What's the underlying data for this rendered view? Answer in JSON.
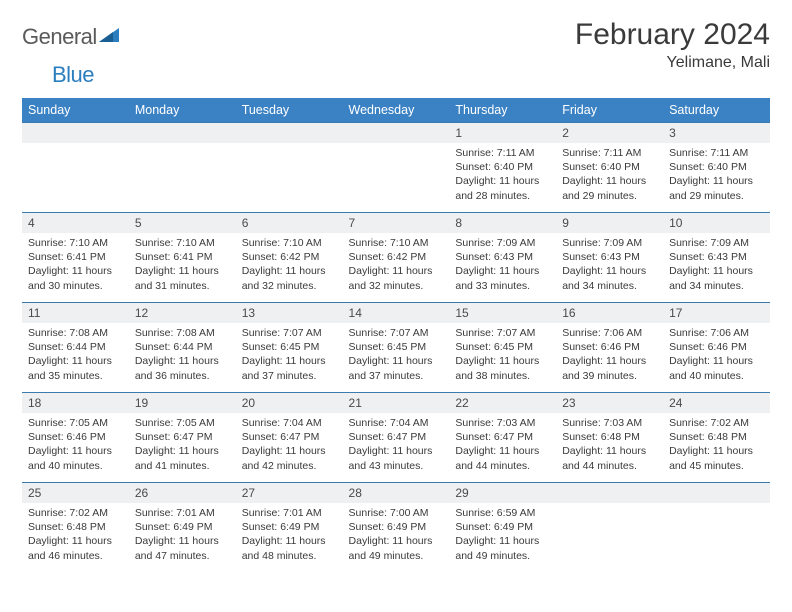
{
  "brand": {
    "part1": "General",
    "part2": "Blue"
  },
  "title": "February 2024",
  "location": "Yelimane, Mali",
  "colors": {
    "header_bg": "#3b82c4",
    "header_text": "#ffffff",
    "cell_border": "#3b7bb0",
    "daynum_bg": "#eef0f2",
    "text": "#3a3a3a",
    "logo_gray": "#5a5a5a",
    "logo_blue": "#2b7fbf"
  },
  "weekdays": [
    "Sunday",
    "Monday",
    "Tuesday",
    "Wednesday",
    "Thursday",
    "Friday",
    "Saturday"
  ],
  "weeks": [
    [
      null,
      null,
      null,
      null,
      {
        "d": "1",
        "sr": "7:11 AM",
        "ss": "6:40 PM",
        "dl": "11 hours and 28 minutes."
      },
      {
        "d": "2",
        "sr": "7:11 AM",
        "ss": "6:40 PM",
        "dl": "11 hours and 29 minutes."
      },
      {
        "d": "3",
        "sr": "7:11 AM",
        "ss": "6:40 PM",
        "dl": "11 hours and 29 minutes."
      }
    ],
    [
      {
        "d": "4",
        "sr": "7:10 AM",
        "ss": "6:41 PM",
        "dl": "11 hours and 30 minutes."
      },
      {
        "d": "5",
        "sr": "7:10 AM",
        "ss": "6:41 PM",
        "dl": "11 hours and 31 minutes."
      },
      {
        "d": "6",
        "sr": "7:10 AM",
        "ss": "6:42 PM",
        "dl": "11 hours and 32 minutes."
      },
      {
        "d": "7",
        "sr": "7:10 AM",
        "ss": "6:42 PM",
        "dl": "11 hours and 32 minutes."
      },
      {
        "d": "8",
        "sr": "7:09 AM",
        "ss": "6:43 PM",
        "dl": "11 hours and 33 minutes."
      },
      {
        "d": "9",
        "sr": "7:09 AM",
        "ss": "6:43 PM",
        "dl": "11 hours and 34 minutes."
      },
      {
        "d": "10",
        "sr": "7:09 AM",
        "ss": "6:43 PM",
        "dl": "11 hours and 34 minutes."
      }
    ],
    [
      {
        "d": "11",
        "sr": "7:08 AM",
        "ss": "6:44 PM",
        "dl": "11 hours and 35 minutes."
      },
      {
        "d": "12",
        "sr": "7:08 AM",
        "ss": "6:44 PM",
        "dl": "11 hours and 36 minutes."
      },
      {
        "d": "13",
        "sr": "7:07 AM",
        "ss": "6:45 PM",
        "dl": "11 hours and 37 minutes."
      },
      {
        "d": "14",
        "sr": "7:07 AM",
        "ss": "6:45 PM",
        "dl": "11 hours and 37 minutes."
      },
      {
        "d": "15",
        "sr": "7:07 AM",
        "ss": "6:45 PM",
        "dl": "11 hours and 38 minutes."
      },
      {
        "d": "16",
        "sr": "7:06 AM",
        "ss": "6:46 PM",
        "dl": "11 hours and 39 minutes."
      },
      {
        "d": "17",
        "sr": "7:06 AM",
        "ss": "6:46 PM",
        "dl": "11 hours and 40 minutes."
      }
    ],
    [
      {
        "d": "18",
        "sr": "7:05 AM",
        "ss": "6:46 PM",
        "dl": "11 hours and 40 minutes."
      },
      {
        "d": "19",
        "sr": "7:05 AM",
        "ss": "6:47 PM",
        "dl": "11 hours and 41 minutes."
      },
      {
        "d": "20",
        "sr": "7:04 AM",
        "ss": "6:47 PM",
        "dl": "11 hours and 42 minutes."
      },
      {
        "d": "21",
        "sr": "7:04 AM",
        "ss": "6:47 PM",
        "dl": "11 hours and 43 minutes."
      },
      {
        "d": "22",
        "sr": "7:03 AM",
        "ss": "6:47 PM",
        "dl": "11 hours and 44 minutes."
      },
      {
        "d": "23",
        "sr": "7:03 AM",
        "ss": "6:48 PM",
        "dl": "11 hours and 44 minutes."
      },
      {
        "d": "24",
        "sr": "7:02 AM",
        "ss": "6:48 PM",
        "dl": "11 hours and 45 minutes."
      }
    ],
    [
      {
        "d": "25",
        "sr": "7:02 AM",
        "ss": "6:48 PM",
        "dl": "11 hours and 46 minutes."
      },
      {
        "d": "26",
        "sr": "7:01 AM",
        "ss": "6:49 PM",
        "dl": "11 hours and 47 minutes."
      },
      {
        "d": "27",
        "sr": "7:01 AM",
        "ss": "6:49 PM",
        "dl": "11 hours and 48 minutes."
      },
      {
        "d": "28",
        "sr": "7:00 AM",
        "ss": "6:49 PM",
        "dl": "11 hours and 49 minutes."
      },
      {
        "d": "29",
        "sr": "6:59 AM",
        "ss": "6:49 PM",
        "dl": "11 hours and 49 minutes."
      },
      null,
      null
    ]
  ],
  "labels": {
    "sunrise": "Sunrise:",
    "sunset": "Sunset:",
    "daylight": "Daylight:"
  }
}
